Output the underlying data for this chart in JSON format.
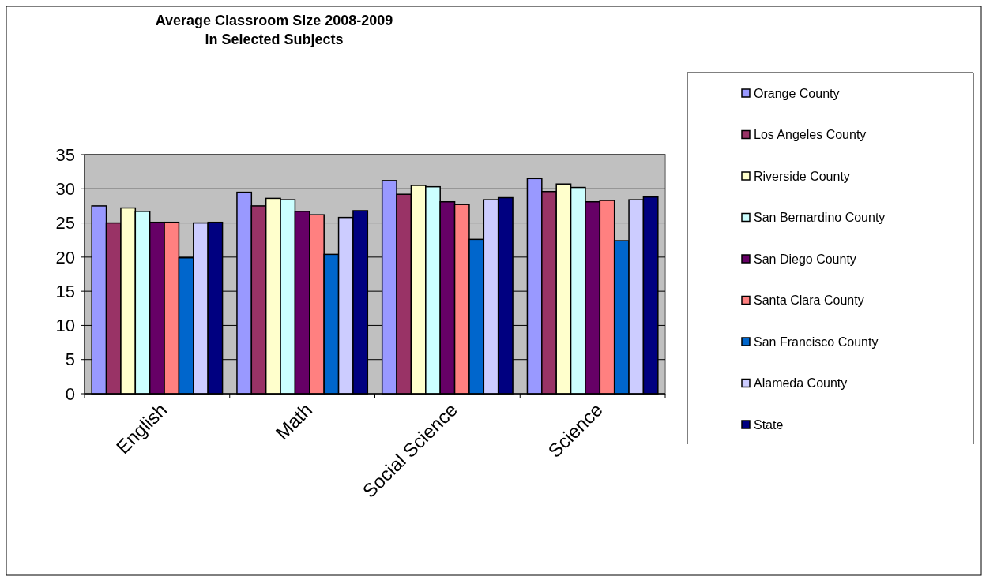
{
  "chart_data": {
    "type": "bar",
    "title": "Average Classroom Size 2008-2009\nin Selected Subjects",
    "categories": [
      "English",
      "Math",
      "Social Science",
      "Science"
    ],
    "series": [
      {
        "name": "Orange County",
        "color": "#9999ff",
        "values": [
          27.5,
          29.5,
          31.2,
          31.5
        ]
      },
      {
        "name": "Los Angeles County",
        "color": "#993366",
        "values": [
          25.0,
          27.5,
          29.2,
          29.6
        ]
      },
      {
        "name": "Riverside County",
        "color": "#ffffcc",
        "values": [
          27.2,
          28.6,
          30.5,
          30.7
        ]
      },
      {
        "name": "San Bernardino County",
        "color": "#ccffff",
        "values": [
          26.7,
          28.4,
          30.3,
          30.2
        ]
      },
      {
        "name": "San Diego County",
        "color": "#660066",
        "values": [
          25.1,
          26.7,
          28.1,
          28.1
        ]
      },
      {
        "name": "Santa Clara County",
        "color": "#ff8080",
        "values": [
          25.1,
          26.2,
          27.7,
          28.3
        ]
      },
      {
        "name": "San Francisco County",
        "color": "#0066cc",
        "values": [
          19.9,
          20.4,
          22.6,
          22.4
        ]
      },
      {
        "name": "Alameda County",
        "color": "#ccccff",
        "values": [
          25.0,
          25.8,
          28.4,
          28.4
        ]
      },
      {
        "name": "State",
        "color": "#000080",
        "values": [
          25.1,
          26.8,
          28.7,
          28.8
        ]
      }
    ],
    "ylim": [
      0,
      35
    ],
    "yticks": [
      0,
      5,
      10,
      15,
      20,
      25,
      30,
      35
    ],
    "grid": "y",
    "legend": "right"
  }
}
